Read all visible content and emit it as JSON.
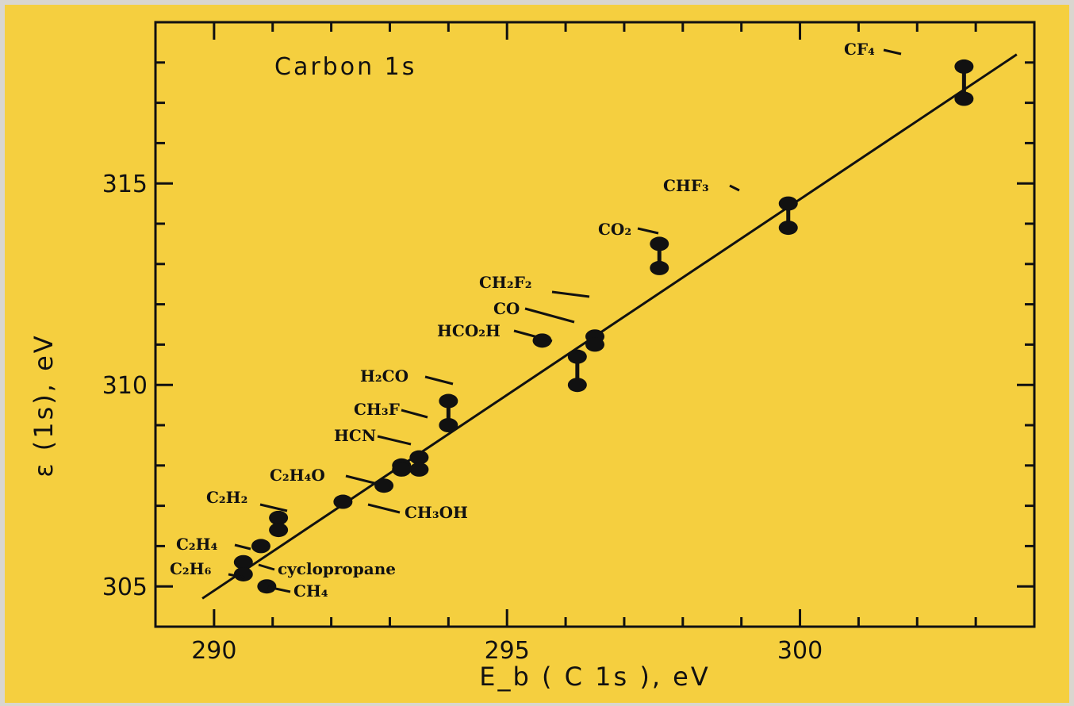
{
  "chart_data": {
    "type": "scatter",
    "title": "Carbon 1s",
    "xlabel": "E_b ( C 1s ), eV",
    "ylabel": "ε (1s), eV",
    "xlim": [
      289,
      304
    ],
    "ylim": [
      304,
      319
    ],
    "x_ticks": [
      290,
      295,
      300
    ],
    "y_ticks": [
      305,
      310,
      315
    ],
    "grid": false,
    "fit_line": {
      "x": [
        289.8,
        303.7
      ],
      "y": [
        304.7,
        318.2
      ]
    },
    "points": [
      {
        "label": "CF₄",
        "x": 302.8,
        "y": [
          317.9,
          317.1
        ]
      },
      {
        "label": "CHF₃",
        "x": 299.8,
        "y": [
          314.5,
          313.9
        ]
      },
      {
        "label": "CO₂",
        "x": 297.6,
        "y": [
          313.5,
          312.9
        ]
      },
      {
        "label": "CH₂F₂",
        "x": 296.5,
        "y": [
          311.2,
          311.0
        ]
      },
      {
        "label": "CO",
        "x": 296.2,
        "y": [
          310.7,
          310.0
        ]
      },
      {
        "label": "HCO₂H",
        "x": 295.6,
        "y": [
          311.1
        ]
      },
      {
        "label": "H₂CO",
        "x": 294.0,
        "y": [
          309.6,
          309.0
        ]
      },
      {
        "label": "CH₃F",
        "x": 293.5,
        "y": [
          308.2,
          307.9
        ]
      },
      {
        "label": "HCN",
        "x": 293.2,
        "y": [
          308.0,
          307.9
        ]
      },
      {
        "label": "C₂H₄O",
        "x": 292.9,
        "y": [
          307.5
        ]
      },
      {
        "label": "CH₃OH",
        "x": 292.2,
        "y": [
          307.1
        ]
      },
      {
        "label": "C₂H₂",
        "x": 291.1,
        "y": [
          306.7,
          306.4
        ]
      },
      {
        "label": "C₂H₄",
        "x": 290.8,
        "y": [
          306.0
        ]
      },
      {
        "label": "cyclopropane",
        "x": 290.5,
        "y": [
          305.6
        ]
      },
      {
        "label": "C₂H₆",
        "x": 290.5,
        "y": [
          305.3
        ]
      },
      {
        "label": "CH₄",
        "x": 290.9,
        "y": [
          305.0
        ]
      }
    ]
  }
}
